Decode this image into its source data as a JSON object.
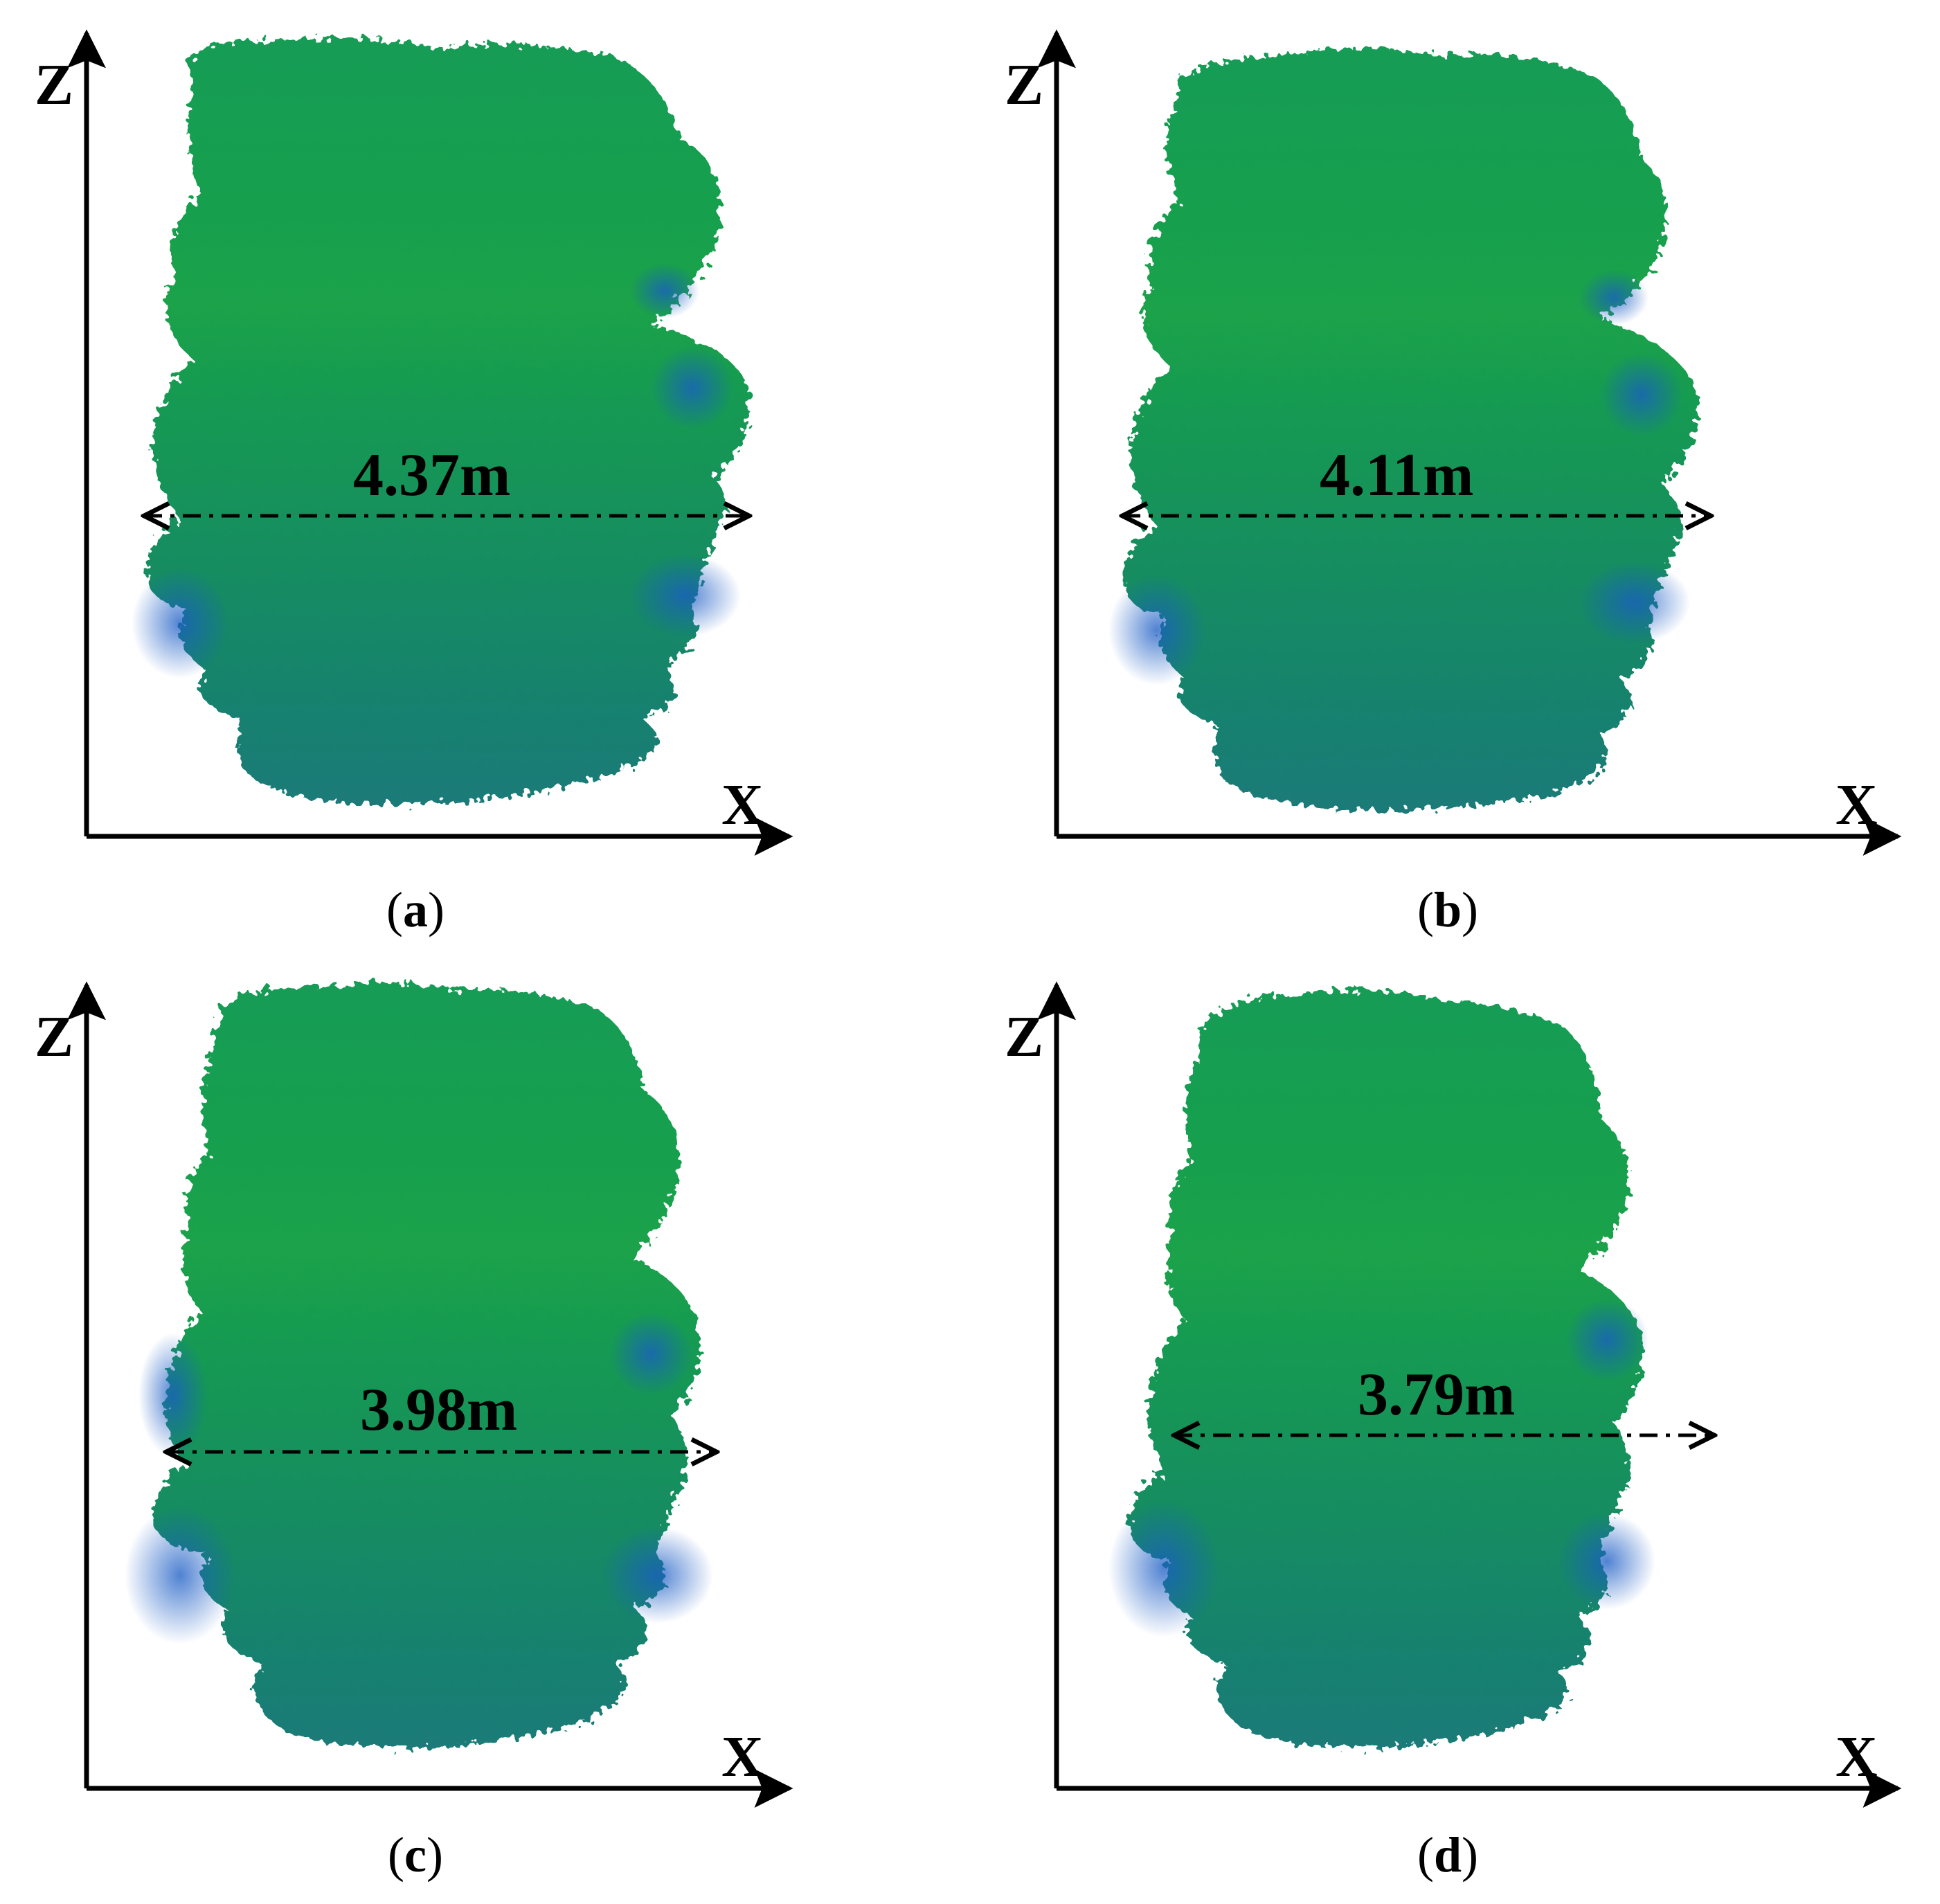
{
  "colors": {
    "canopy_green": "#1aa24a",
    "canopy_teal": "#168a6a",
    "canopy_blue": "#1a5cc4",
    "axis": "#000000"
  },
  "panels": [
    {
      "id": "a",
      "caption_open": "(",
      "caption_letter": "a",
      "caption_close": ")",
      "width_label": "4.37m",
      "axis_z": "Z",
      "axis_x": "X"
    },
    {
      "id": "b",
      "caption_open": "(",
      "caption_letter": "b",
      "caption_close": ")",
      "width_label": "4.11m",
      "axis_z": "Z",
      "axis_x": "X"
    },
    {
      "id": "c",
      "caption_open": "(",
      "caption_letter": "c",
      "caption_close": ")",
      "width_label": "3.98m",
      "axis_z": "Z",
      "axis_x": "X"
    },
    {
      "id": "d",
      "caption_open": "(",
      "caption_letter": "d",
      "caption_close": ")",
      "width_label": "3.79m",
      "axis_z": "Z",
      "axis_x": "X"
    }
  ]
}
